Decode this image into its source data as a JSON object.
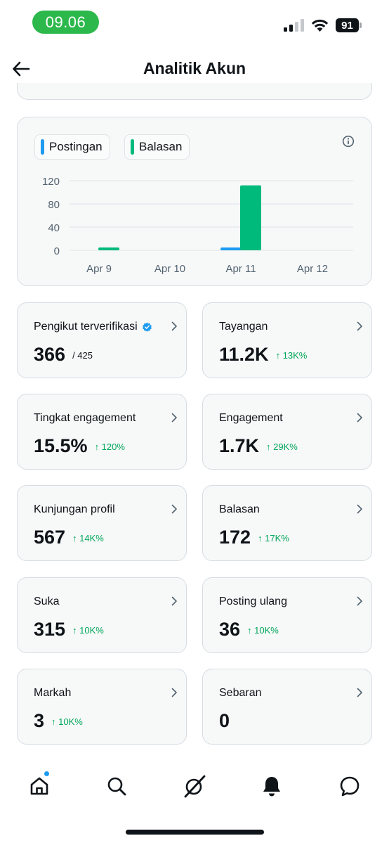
{
  "status_bar": {
    "time": "09.06",
    "battery": "91"
  },
  "header": {
    "title": "Analitik Akun"
  },
  "chart_data": {
    "type": "bar",
    "categories": [
      "Apr 9",
      "Apr 10",
      "Apr 11",
      "Apr 12"
    ],
    "series": [
      {
        "name": "Postingan",
        "color": "#1d9bf0",
        "values": [
          0,
          0,
          4,
          0
        ]
      },
      {
        "name": "Balasan",
        "color": "#00ba7c",
        "values": [
          4,
          0,
          112,
          0
        ]
      }
    ],
    "yticks": [
      0,
      40,
      80,
      120
    ],
    "ylim": [
      0,
      120
    ],
    "grid": true,
    "legend": "top-left"
  },
  "stats": [
    {
      "label": "Pengikut terverifikasi",
      "value": "366",
      "extra": "/ 425",
      "change": "",
      "verified": true
    },
    {
      "label": "Tayangan",
      "value": "11.2K",
      "extra": "",
      "change": "↑ 13K%"
    },
    {
      "label": "Tingkat engagement",
      "value": "15.5%",
      "extra": "",
      "change": "↑ 120%"
    },
    {
      "label": "Engagement",
      "value": "1.7K",
      "extra": "",
      "change": "↑ 29K%"
    },
    {
      "label": "Kunjungan profil",
      "value": "567",
      "extra": "",
      "change": "↑ 14K%"
    },
    {
      "label": "Balasan",
      "value": "172",
      "extra": "",
      "change": "↑ 17K%"
    },
    {
      "label": "Suka",
      "value": "315",
      "extra": "",
      "change": "↑ 10K%"
    },
    {
      "label": "Posting ulang",
      "value": "36",
      "extra": "",
      "change": "↑ 10K%"
    },
    {
      "label": "Markah",
      "value": "3",
      "extra": "",
      "change": "↑ 10K%"
    },
    {
      "label": "Sebaran",
      "value": "0",
      "extra": "",
      "change": ""
    }
  ],
  "nav": [
    {
      "name": "home-icon",
      "active": true,
      "notification": true
    },
    {
      "name": "search-icon",
      "active": false
    },
    {
      "name": "grok-icon",
      "active": false
    },
    {
      "name": "bell-icon",
      "active": false
    },
    {
      "name": "messages-icon",
      "active": false
    }
  ],
  "colors": {
    "accent": "#1d9bf0",
    "positive": "#00a65a",
    "balasan": "#00ba7c",
    "status_pill": "#2db84c"
  }
}
